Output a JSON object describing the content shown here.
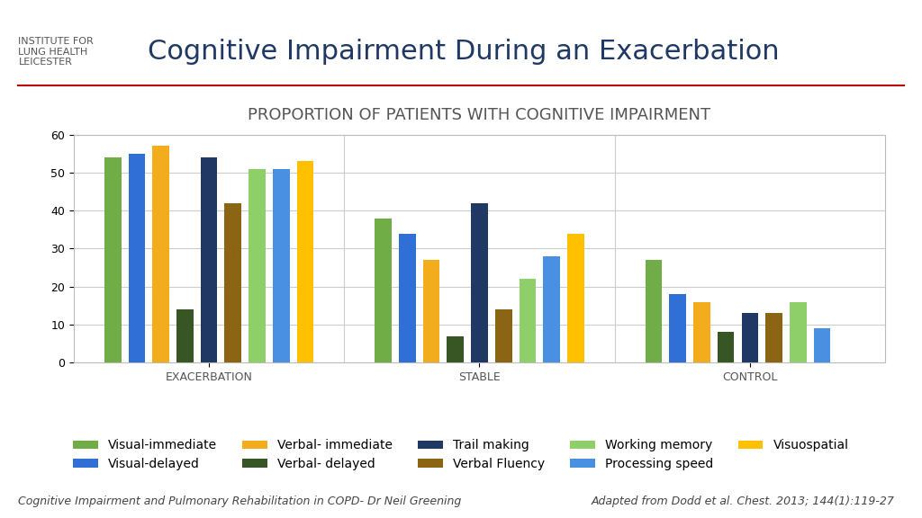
{
  "chart_data": {
    "type": "bar",
    "title": "Cognitive Impairment During an Exacerbation",
    "subtitle": "PROPORTION OF PATIENTS WITH COGNITIVE IMPAIRMENT",
    "categories": [
      "EXACERBATION",
      "STABLE",
      "CONTROL"
    ],
    "series": [
      {
        "name": "Visual-immediate",
        "color": "#70ad47",
        "values": [
          54,
          38,
          27
        ]
      },
      {
        "name": "Visual-delayed",
        "color": "#2f6fd6",
        "values": [
          55,
          34,
          18
        ]
      },
      {
        "name": "Verbal- immediate",
        "color": "#f2ac1c",
        "values": [
          57,
          27,
          16
        ]
      },
      {
        "name": "Verbal- delayed",
        "color": "#375623",
        "values": [
          14,
          7,
          8
        ]
      },
      {
        "name": "Trail making",
        "color": "#203864",
        "values": [
          54,
          42,
          13
        ]
      },
      {
        "name": "Verbal Fluency",
        "color": "#8b6414",
        "values": [
          42,
          14,
          13
        ]
      },
      {
        "name": "Working memory",
        "color": "#8fcf6a",
        "values": [
          51,
          22,
          16
        ]
      },
      {
        "name": "Processing speed",
        "color": "#4a90e2",
        "values": [
          51,
          28,
          9
        ]
      },
      {
        "name": "Visuospatial",
        "color": "#ffc000",
        "values": [
          53,
          34,
          null
        ]
      }
    ],
    "ylim": [
      0,
      60
    ],
    "yticks": [
      0,
      10,
      20,
      30,
      40,
      50,
      60
    ],
    "grid": true,
    "legend": "lower center",
    "annotations": [
      "Adapted from Dodd et al. Chest. 2013; 144(1):119-27",
      "Cognitive Impairment and Pulmonary Rehabilitation in COPD- Dr Neil Greening",
      "INSTITUTE FOR\nLUNG HEALTH\nLEICESTER"
    ]
  }
}
